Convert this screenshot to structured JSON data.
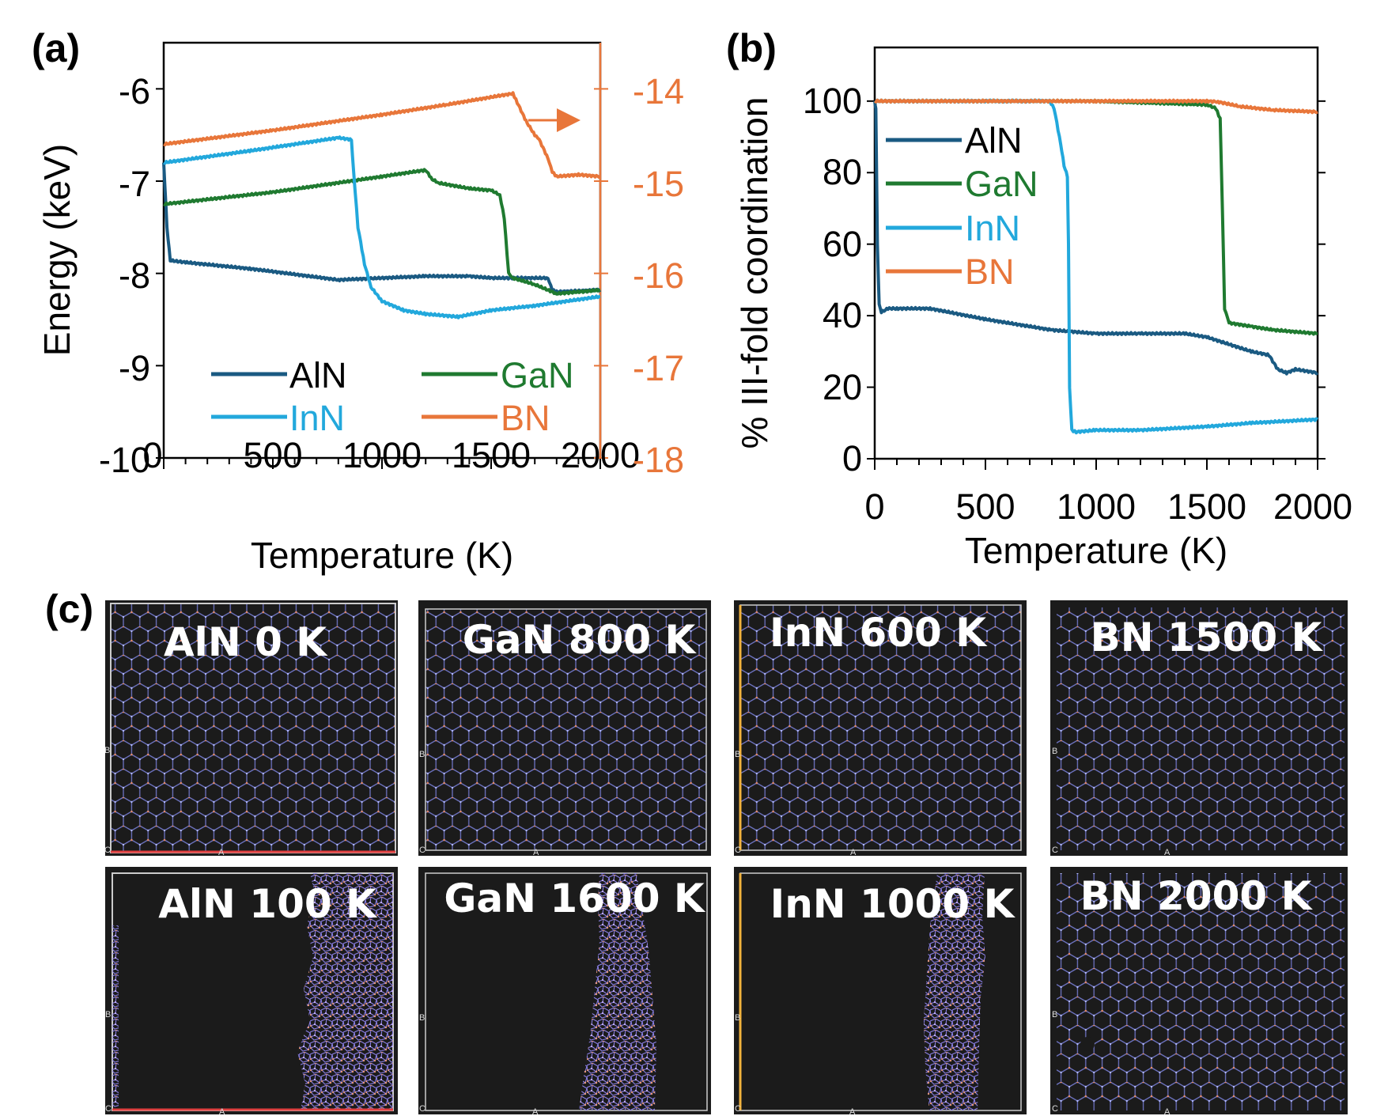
{
  "panels": {
    "a": "(a)",
    "b": "(b)",
    "c": "(c)"
  },
  "colors": {
    "AlN": "#1a5a82",
    "GaN": "#1f7a30",
    "InN": "#22a8dc",
    "BN": "#e8763a",
    "snapshot_bg": "#1b1b1b",
    "lattice": "#7b83e0"
  },
  "chart_data": [
    {
      "panel": "a",
      "type": "line",
      "xlabel": "Temperature (K)",
      "ylabel": "Energy (keV)",
      "xlim": [
        0,
        2000
      ],
      "ylim": [
        -10,
        -5.5
      ],
      "y2lim": [
        -18,
        -13.5
      ],
      "xticks": [
        "0",
        "500",
        "1000",
        "1500",
        "2000"
      ],
      "yticks": [
        "-6",
        "-7",
        "-8",
        "-9",
        "-10"
      ],
      "y2ticks": [
        "-14",
        "-15",
        "-16",
        "-17",
        "-18"
      ],
      "series": [
        {
          "name": "AlN",
          "axis": "left",
          "x": [
            0,
            15,
            30,
            100,
            400,
            800,
            1200,
            1400,
            1500,
            1760,
            1780,
            1800,
            2000
          ],
          "y": [
            -6.8,
            -7.5,
            -7.86,
            -7.88,
            -7.95,
            -8.07,
            -8.03,
            -8.03,
            -8.05,
            -8.05,
            -8.18,
            -8.2,
            -8.18
          ]
        },
        {
          "name": "GaN",
          "axis": "left",
          "x": [
            0,
            500,
            1000,
            1200,
            1230,
            1260,
            1400,
            1500,
            1540,
            1560,
            1580,
            1600,
            1700,
            1800,
            2000
          ],
          "y": [
            -7.25,
            -7.12,
            -6.95,
            -6.88,
            -6.98,
            -7.02,
            -7.08,
            -7.1,
            -7.15,
            -7.4,
            -8.0,
            -8.05,
            -8.12,
            -8.22,
            -8.18
          ]
        },
        {
          "name": "InN",
          "axis": "left",
          "x": [
            0,
            400,
            800,
            860,
            870,
            890,
            920,
            950,
            1000,
            1100,
            1200,
            1350,
            1500,
            1700,
            2000
          ],
          "y": [
            -6.8,
            -6.67,
            -6.53,
            -6.55,
            -6.9,
            -7.5,
            -7.9,
            -8.15,
            -8.3,
            -8.4,
            -8.44,
            -8.47,
            -8.4,
            -8.35,
            -8.25
          ]
        },
        {
          "name": "BN",
          "axis": "right",
          "x": [
            0,
            500,
            1000,
            1300,
            1600,
            1620,
            1660,
            1700,
            1720,
            1760,
            1780,
            1800,
            1900,
            2000
          ],
          "y": [
            -14.6,
            -14.45,
            -14.28,
            -14.17,
            -14.05,
            -14.15,
            -14.35,
            -14.5,
            -14.55,
            -14.75,
            -14.9,
            -14.95,
            -14.93,
            -14.95
          ]
        }
      ],
      "annotation": "arrow pointing to right axis"
    },
    {
      "panel": "b",
      "type": "line",
      "xlabel": "Temperature (K)",
      "ylabel": "% III-fold coordination",
      "xlim": [
        0,
        2000
      ],
      "ylim": [
        0,
        115
      ],
      "xticks": [
        "0",
        "500",
        "1000",
        "1500",
        "2000"
      ],
      "yticks": [
        "100",
        "80",
        "60",
        "40",
        "20",
        "0"
      ],
      "series": [
        {
          "name": "AlN",
          "x": [
            0,
            5,
            12,
            20,
            30,
            60,
            100,
            250,
            500,
            800,
            1000,
            1200,
            1400,
            1500,
            1700,
            1780,
            1820,
            1860,
            1900,
            2000
          ],
          "y": [
            100,
            98,
            60,
            43,
            41,
            42,
            42,
            42,
            39,
            36,
            35,
            35,
            35,
            34,
            30,
            29,
            25,
            24,
            25,
            24
          ]
        },
        {
          "name": "GaN",
          "x": [
            0,
            500,
            1000,
            1500,
            1540,
            1560,
            1570,
            1580,
            1600,
            1700,
            1800,
            2000
          ],
          "y": [
            100,
            100,
            100,
            99,
            98,
            95,
            70,
            42,
            38,
            37,
            36,
            35
          ]
        },
        {
          "name": "InN",
          "x": [
            0,
            750,
            790,
            810,
            840,
            855,
            870,
            875,
            880,
            890,
            910,
            1000,
            1200,
            1500,
            1700,
            2000
          ],
          "y": [
            100,
            100,
            100,
            98,
            88,
            82,
            79,
            60,
            20,
            8,
            7.5,
            8,
            8,
            9,
            10,
            11
          ]
        },
        {
          "name": "BN",
          "x": [
            0,
            500,
            1000,
            1500,
            1550,
            1650,
            1800,
            2000
          ],
          "y": [
            100,
            100,
            100,
            100,
            99.8,
            98.5,
            97.5,
            97
          ]
        }
      ]
    }
  ],
  "snapshots": {
    "row1": [
      {
        "title": "AlN 0 K",
        "kind": "crystal"
      },
      {
        "title": "GaN 800 K",
        "kind": "crystal"
      },
      {
        "title": "InN 600 K",
        "kind": "crystal"
      },
      {
        "title": "BN 1500 K",
        "kind": "crystal"
      }
    ],
    "row2": [
      {
        "title": "AlN 100 K",
        "kind": "band"
      },
      {
        "title": "GaN 1600 K",
        "kind": "band"
      },
      {
        "title": "InN 1000 K",
        "kind": "band"
      },
      {
        "title": "BN 2000 K",
        "kind": "crystal"
      }
    ],
    "axis_letters": {
      "a": "A",
      "b": "B",
      "c": "C"
    }
  }
}
